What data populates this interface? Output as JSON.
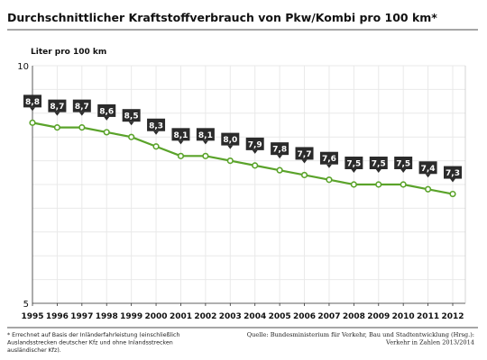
{
  "chart_data": {
    "type": "line",
    "title": "Durchschnittlicher Kraftstoffverbrauch von Pkw/Kombi pro 100 km*",
    "unit_label": "Liter pro 100 km",
    "xlabel": "",
    "ylabel": "",
    "x": [
      "1995",
      "1996",
      "1997",
      "1998",
      "1999",
      "2000",
      "2001",
      "2002",
      "2003",
      "2004",
      "2005",
      "2006",
      "2007",
      "2008",
      "2009",
      "2010",
      "2011",
      "2012"
    ],
    "values": [
      8.8,
      8.7,
      8.7,
      8.6,
      8.5,
      8.3,
      8.1,
      8.1,
      8.0,
      7.9,
      7.8,
      7.7,
      7.6,
      7.5,
      7.5,
      7.5,
      7.4,
      7.3
    ],
    "data_labels": [
      "8,8",
      "8,7",
      "8,7",
      "8,6",
      "8,5",
      "8,3",
      "8,1",
      "8,1",
      "8,0",
      "7,9",
      "7,8",
      "7,7",
      "7,6",
      "7,5",
      "7,5",
      "7,5",
      "7,4",
      "7,3"
    ],
    "ylim": [
      5,
      10
    ],
    "yticks": [
      "5",
      "10"
    ],
    "grid": true,
    "legend": "none",
    "colors": {
      "line": "#5aa32a",
      "marker": "#ffffff",
      "label_box": "#2b2b2b",
      "grid": "#e9e9e9"
    }
  },
  "footnote_lines": [
    "* Errechnet auf Basis der Inländerfahrleistung (einschließlich",
    "Auslandsstrecken deutscher Kfz und ohne Inlandsstrecken",
    "ausländischer Kfz)."
  ],
  "source_lines": [
    "Quelle: Bundesministerium für Verkehr, Bau und Stadtentwicklung (Hrsg.):",
    "Verkehr in Zahlen 2013/2014"
  ]
}
